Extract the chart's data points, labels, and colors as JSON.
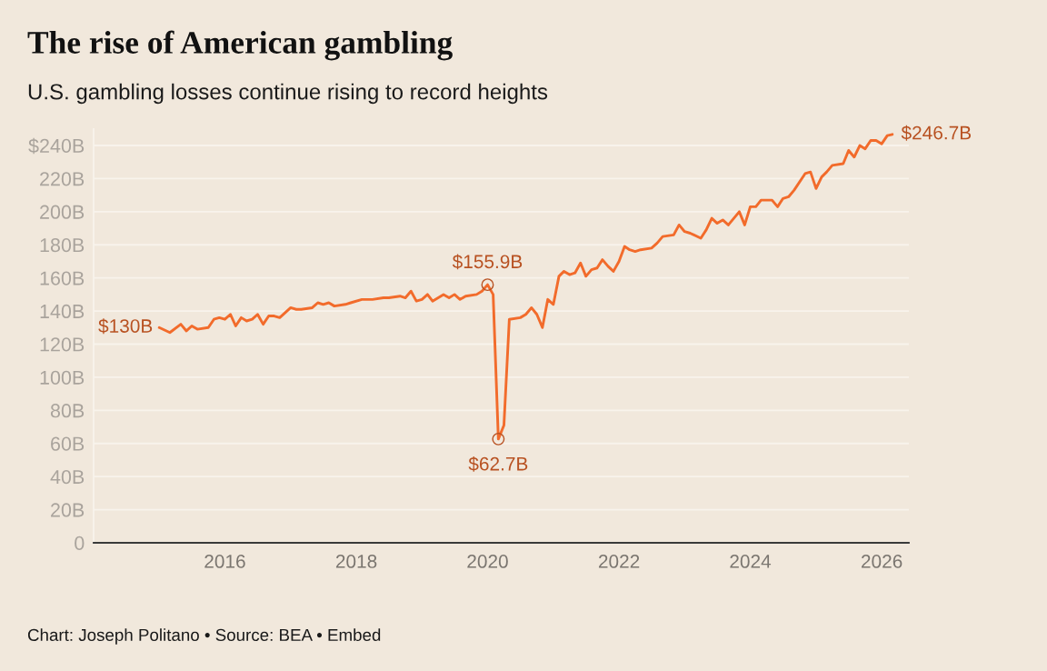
{
  "chart_data": {
    "type": "line",
    "title": "The rise of American gambling",
    "subtitle": "U.S. gambling losses continue rising to record heights",
    "x": [
      "2015-01",
      "2015-03",
      "2015-05",
      "2015-06",
      "2015-07",
      "2015-08",
      "2015-10",
      "2015-11",
      "2015-12",
      "2016-01",
      "2016-02",
      "2016-03",
      "2016-04",
      "2016-05",
      "2016-06",
      "2016-07",
      "2016-08",
      "2016-09",
      "2016-10",
      "2016-11",
      "2017-01",
      "2017-02",
      "2017-03",
      "2017-05",
      "2017-06",
      "2017-07",
      "2017-08",
      "2017-09",
      "2017-11",
      "2017-12",
      "2018-02",
      "2018-04",
      "2018-06",
      "2018-07",
      "2018-09",
      "2018-10",
      "2018-11",
      "2018-12",
      "2019-01",
      "2019-02",
      "2019-03",
      "2019-05",
      "2019-06",
      "2019-07",
      "2019-08",
      "2019-09",
      "2019-11",
      "2019-12",
      "2020-01",
      "2020-02",
      "2020-03",
      "2020-04",
      "2020-05",
      "2020-07",
      "2020-08",
      "2020-09",
      "2020-10",
      "2020-11",
      "2020-12",
      "2021-01",
      "2021-02",
      "2021-03",
      "2021-04",
      "2021-05",
      "2021-06",
      "2021-07",
      "2021-08",
      "2021-09",
      "2021-10",
      "2021-11",
      "2021-12",
      "2022-01",
      "2022-02",
      "2022-03",
      "2022-04",
      "2022-05",
      "2022-07",
      "2022-08",
      "2022-09",
      "2022-11",
      "2022-12",
      "2023-01",
      "2023-02",
      "2023-04",
      "2023-05",
      "2023-06",
      "2023-07",
      "2023-08",
      "2023-09",
      "2023-11",
      "2023-12",
      "2024-01",
      "2024-02",
      "2024-03",
      "2024-05",
      "2024-06",
      "2024-07",
      "2024-08",
      "2024-09",
      "2024-11",
      "2024-12",
      "2025-01",
      "2025-02",
      "2025-03",
      "2025-04",
      "2025-06",
      "2025-07",
      "2025-08",
      "2025-09",
      "2025-10",
      "2025-11",
      "2025-12",
      "2026-01",
      "2026-02",
      "2026-03"
    ],
    "series": [
      {
        "color": "#f26b2b",
        "values": [
          130,
          127,
          132,
          128,
          131,
          129,
          130,
          135,
          136,
          135,
          138,
          131,
          136,
          134,
          135,
          138,
          132,
          137,
          137,
          136,
          142,
          141,
          141,
          142,
          145,
          144,
          145,
          143,
          144,
          145,
          147,
          147,
          148,
          148,
          149,
          148,
          152,
          146,
          147,
          150,
          146,
          150,
          148,
          150,
          147,
          149,
          150,
          152,
          155.9,
          150,
          62.7,
          71,
          135,
          136,
          138,
          142,
          138,
          130,
          147,
          144,
          161,
          164,
          162,
          163,
          169,
          161,
          165,
          166,
          171,
          167,
          164,
          170,
          179,
          177,
          176,
          177,
          178,
          181,
          185,
          186,
          192,
          188,
          187,
          184,
          189,
          196,
          193,
          195,
          192,
          200,
          192,
          203,
          203,
          207,
          207,
          203,
          208,
          209,
          213,
          223,
          224,
          214,
          221,
          224,
          228,
          229,
          237,
          233,
          240,
          238,
          243,
          243,
          241,
          246,
          246.7
        ]
      }
    ],
    "xlim": [
      "2014-01",
      "2026-06"
    ],
    "xticks": [
      {
        "value": "2016-01",
        "label": "2016"
      },
      {
        "value": "2018-01",
        "label": "2018"
      },
      {
        "value": "2020-01",
        "label": "2020"
      },
      {
        "value": "2022-01",
        "label": "2022"
      },
      {
        "value": "2024-01",
        "label": "2024"
      },
      {
        "value": "2026-01",
        "label": "2026"
      }
    ],
    "ylim": [
      0,
      250
    ],
    "yticks": [
      0,
      {
        "value": 20,
        "label": "20B"
      },
      {
        "value": 40,
        "label": "40B"
      },
      {
        "value": 60,
        "label": "60B"
      },
      {
        "value": 80,
        "label": "80B"
      },
      {
        "value": 100,
        "label": "100B"
      },
      {
        "value": 120,
        "label": "120B"
      },
      {
        "value": 140,
        "label": "140B"
      },
      {
        "value": 160,
        "label": "160B"
      },
      {
        "value": 180,
        "label": "180B"
      },
      {
        "value": 200,
        "label": "200B"
      },
      {
        "value": 220,
        "label": "220B"
      },
      {
        "value": 240,
        "label": "$240B"
      }
    ],
    "grid": "y",
    "annotations": [
      {
        "text": "$130B",
        "x": "2015-01",
        "y": 130
      },
      {
        "text": "$155.9B",
        "x": "2020-01",
        "y": 155.9
      },
      {
        "text": "$62.7B",
        "x": "2020-03",
        "y": 62.7
      },
      {
        "text": "$246.7B",
        "x": "2026-03",
        "y": 246.7
      },
      "Chart: Joseph Politano • Source: BEA • Embed"
    ]
  }
}
